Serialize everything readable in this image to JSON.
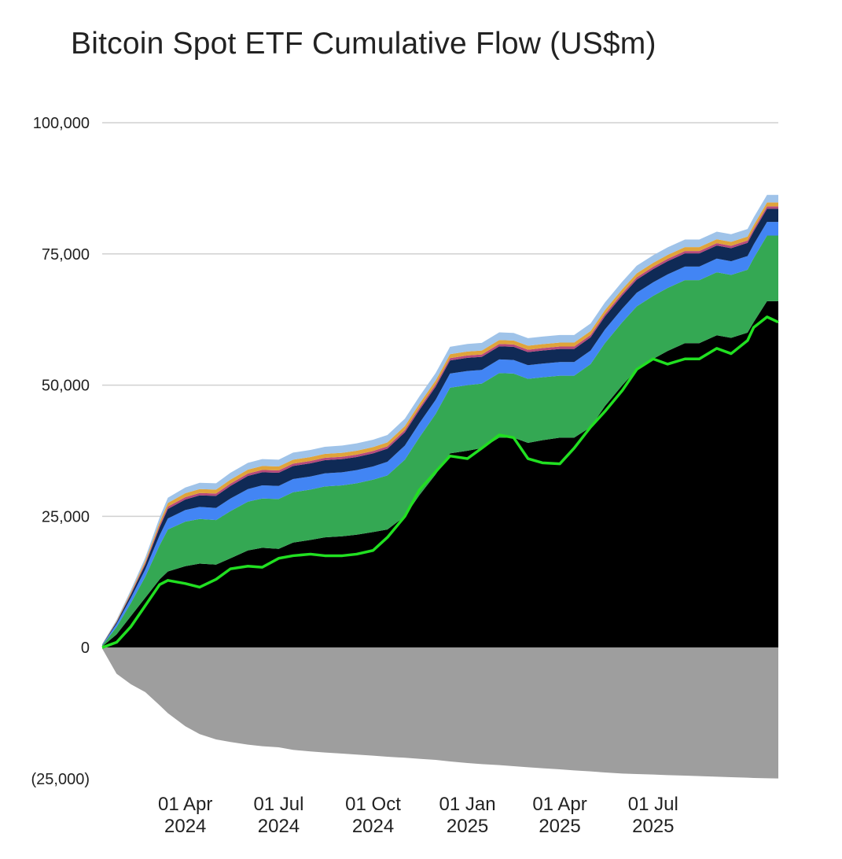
{
  "chart_data": {
    "type": "area",
    "title": "Bitcoin Spot ETF Cumulative Flow (US$m)",
    "xlabel": "",
    "ylabel": "",
    "x_range": [
      "2024-01-11",
      "2025-10-31"
    ],
    "ylim": [
      -25000,
      100000
    ],
    "y_ticks": [
      {
        "value": 100000,
        "label": "100,000"
      },
      {
        "value": 75000,
        "label": "75,000"
      },
      {
        "value": 50000,
        "label": "50,000"
      },
      {
        "value": 25000,
        "label": "25,000"
      },
      {
        "value": 0,
        "label": "0"
      },
      {
        "value": -25000,
        "label": "(25,000)"
      }
    ],
    "x_ticks": [
      {
        "date": "2024-04-01",
        "line1": "01 Apr",
        "line2": "2024"
      },
      {
        "date": "2024-07-01",
        "line1": "01 Jul",
        "line2": "2024"
      },
      {
        "date": "2024-10-01",
        "line1": "01 Oct",
        "line2": "2024"
      },
      {
        "date": "2025-01-01",
        "line1": "01 Jan",
        "line2": "2025"
      },
      {
        "date": "2025-04-01",
        "line1": "01 Apr",
        "line2": "2025"
      },
      {
        "date": "2025-07-01",
        "line1": "01 Jul",
        "line2": "2025"
      }
    ],
    "grid": true,
    "legend": "none",
    "x": [
      "2024-01-11",
      "2024-01-25",
      "2024-02-08",
      "2024-02-22",
      "2024-03-07",
      "2024-03-15",
      "2024-04-01",
      "2024-04-15",
      "2024-05-01",
      "2024-05-15",
      "2024-06-01",
      "2024-06-15",
      "2024-07-01",
      "2024-07-15",
      "2024-08-01",
      "2024-08-15",
      "2024-09-01",
      "2024-09-15",
      "2024-10-01",
      "2024-10-15",
      "2024-11-01",
      "2024-11-15",
      "2024-12-01",
      "2024-12-15",
      "2025-01-01",
      "2025-01-15",
      "2025-02-01",
      "2025-02-15",
      "2025-03-01",
      "2025-03-15",
      "2025-04-01",
      "2025-04-15",
      "2025-05-01",
      "2025-05-15",
      "2025-06-01",
      "2025-06-15",
      "2025-07-01",
      "2025-07-15",
      "2025-08-01",
      "2025-08-15",
      "2025-09-01",
      "2025-09-15",
      "2025-10-01",
      "2025-10-07",
      "2025-10-20",
      "2025-10-31"
    ],
    "series": [
      {
        "color": "#000000",
        "values": [
          200,
          2500,
          6000,
          9500,
          13000,
          14500,
          15500,
          16000,
          15800,
          17000,
          18500,
          19000,
          18800,
          20000,
          20500,
          21000,
          21200,
          21500,
          22000,
          22500,
          25000,
          29000,
          33000,
          37000,
          37500,
          38000,
          40000,
          40000,
          39000,
          39500,
          40000,
          40000,
          42000,
          46000,
          50000,
          53000,
          55000,
          56500,
          58000,
          58000,
          59500,
          59000,
          60000,
          62000,
          66000,
          66000
        ]
      },
      {
        "color": "#34a853",
        "values": [
          200,
          1400,
          2500,
          4000,
          6500,
          8000,
          8500,
          8500,
          8500,
          9000,
          9300,
          9400,
          9500,
          9600,
          9600,
          9700,
          9700,
          9800,
          10000,
          10300,
          10800,
          11000,
          11500,
          12500,
          12500,
          12300,
          12300,
          12200,
          12200,
          12000,
          11800,
          11800,
          12000,
          12000,
          12000,
          12000,
          12000,
          12000,
          12000,
          12000,
          12000,
          12000,
          12000,
          12200,
          12500,
          12500
        ]
      },
      {
        "color": "#4285f4",
        "values": [
          100,
          600,
          1000,
          1400,
          1900,
          2100,
          2200,
          2300,
          2300,
          2400,
          2400,
          2500,
          2500,
          2500,
          2500,
          2500,
          2500,
          2500,
          2500,
          2600,
          2700,
          2700,
          2700,
          2700,
          2700,
          2600,
          2600,
          2600,
          2600,
          2600,
          2600,
          2600,
          2600,
          2600,
          2600,
          2600,
          2600,
          2600,
          2600,
          2600,
          2600,
          2600,
          2600,
          2600,
          2600,
          2600
        ]
      },
      {
        "color": "#0f2a56",
        "values": [
          50,
          300,
          600,
          900,
          1500,
          1800,
          2000,
          2200,
          2300,
          2400,
          2500,
          2500,
          2500,
          2500,
          2500,
          2500,
          2500,
          2500,
          2500,
          2500,
          2500,
          2500,
          2500,
          2500,
          2500,
          2500,
          2500,
          2500,
          2500,
          2500,
          2500,
          2500,
          2500,
          2500,
          2500,
          2500,
          2500,
          2500,
          2500,
          2500,
          2500,
          2500,
          2500,
          2500,
          2500,
          2500
        ]
      },
      {
        "color": "#b64a7b",
        "values": [
          30,
          120,
          200,
          300,
          400,
          450,
          450,
          450,
          450,
          450,
          450,
          450,
          450,
          450,
          450,
          450,
          450,
          450,
          450,
          450,
          450,
          450,
          450,
          450,
          450,
          450,
          450,
          450,
          450,
          450,
          450,
          450,
          450,
          450,
          450,
          450,
          450,
          450,
          450,
          450,
          450,
          450,
          450,
          450,
          450,
          450
        ]
      },
      {
        "color": "#e0a43a",
        "values": [
          40,
          150,
          300,
          450,
          600,
          700,
          750,
          750,
          750,
          750,
          750,
          750,
          750,
          750,
          750,
          750,
          750,
          750,
          750,
          750,
          750,
          750,
          750,
          750,
          750,
          750,
          750,
          750,
          750,
          750,
          750,
          750,
          750,
          750,
          750,
          750,
          750,
          750,
          750,
          750,
          750,
          750,
          750,
          750,
          750,
          750
        ]
      },
      {
        "color": "#9fc3e9",
        "values": [
          60,
          200,
          400,
          600,
          900,
          1000,
          1100,
          1200,
          1200,
          1300,
          1300,
          1300,
          1300,
          1350,
          1350,
          1350,
          1400,
          1400,
          1400,
          1400,
          1400,
          1400,
          1400,
          1400,
          1450,
          1450,
          1450,
          1450,
          1450,
          1450,
          1450,
          1450,
          1450,
          1450,
          1450,
          1450,
          1450,
          1450,
          1450,
          1450,
          1450,
          1450,
          1450,
          1450,
          1450,
          1450
        ]
      },
      {
        "color": "#9e9e9e",
        "values": [
          -200,
          -5000,
          -7000,
          -8500,
          -11000,
          -12500,
          -15000,
          -16500,
          -17500,
          -18000,
          -18500,
          -18800,
          -19000,
          -19500,
          -19800,
          -20000,
          -20200,
          -20400,
          -20600,
          -20800,
          -21000,
          -21200,
          -21400,
          -21700,
          -22000,
          -22200,
          -22400,
          -22600,
          -22800,
          -23000,
          -23200,
          -23400,
          -23600,
          -23800,
          -24000,
          -24100,
          -24200,
          -24300,
          -24400,
          -24500,
          -24600,
          -24700,
          -24800,
          -24850,
          -24900,
          -24950
        ]
      },
      {
        "color": "#21e021",
        "values": [
          0,
          1000,
          4000,
          8000,
          12000,
          12800,
          12200,
          11500,
          13000,
          15000,
          15500,
          15300,
          17000,
          17500,
          17800,
          17500,
          17500,
          17800,
          18500,
          21000,
          25000,
          30000,
          33500,
          36500,
          36000,
          38000,
          40500,
          40000,
          36000,
          35200,
          35000,
          38000,
          42000,
          45000,
          49000,
          53000,
          55000,
          54000,
          55000,
          55000,
          57000,
          56000,
          58500,
          61000,
          63000,
          62000
        ]
      }
    ]
  },
  "colors": {
    "gridline": "#d0d0d0",
    "text": "#222222"
  }
}
